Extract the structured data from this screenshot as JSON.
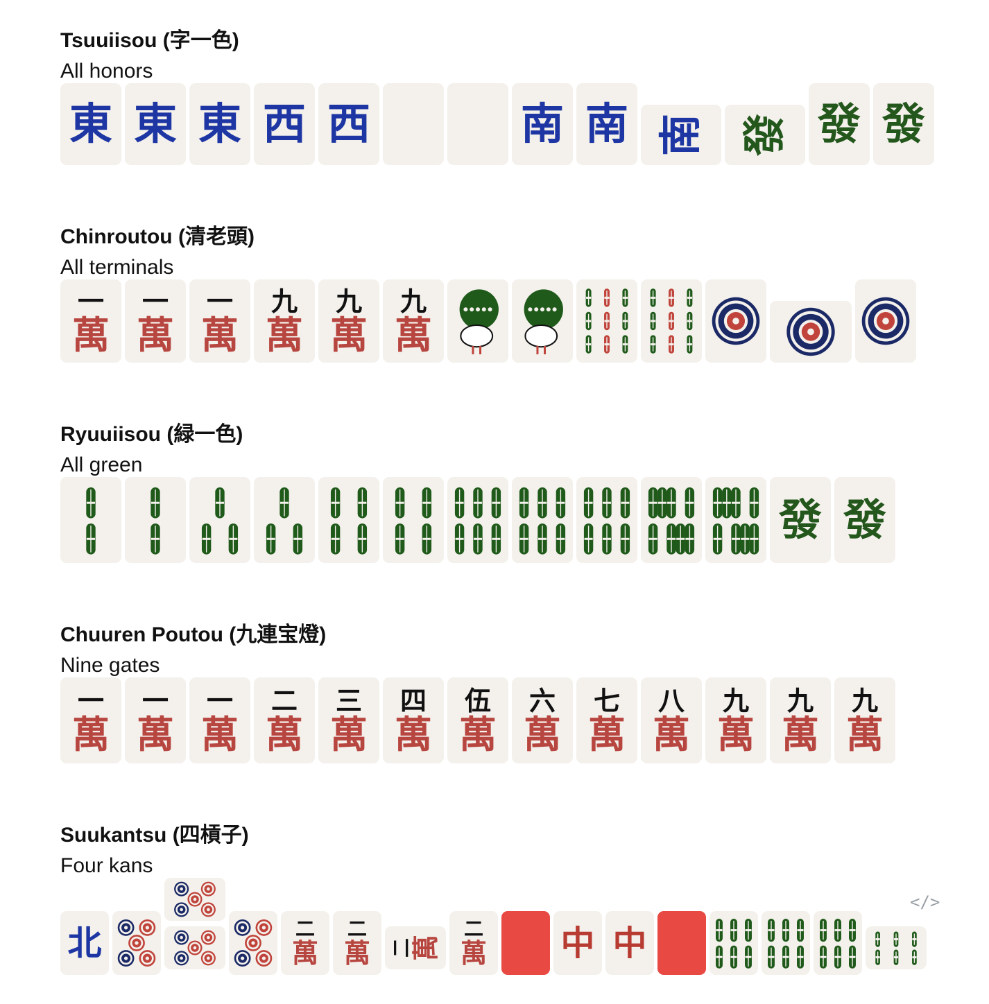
{
  "sections": [
    {
      "title": "Tsuuiisou (字一色)",
      "subtitle": "All honors",
      "tiles": [
        {
          "kind": "honor",
          "char": "東",
          "color": "#1d36a3"
        },
        {
          "kind": "honor",
          "char": "東",
          "color": "#1d36a3"
        },
        {
          "kind": "honor",
          "char": "東",
          "color": "#1d36a3"
        },
        {
          "kind": "honor",
          "char": "西",
          "color": "#1d36a3"
        },
        {
          "kind": "honor",
          "char": "西",
          "color": "#1d36a3"
        },
        {
          "kind": "blank"
        },
        {
          "kind": "blank"
        },
        {
          "kind": "honor",
          "char": "南",
          "color": "#1d36a3"
        },
        {
          "kind": "honor",
          "char": "南",
          "color": "#1d36a3"
        },
        {
          "kind": "honor",
          "char": "南",
          "color": "#1d36a3",
          "rotated": true
        },
        {
          "kind": "honor",
          "char": "發",
          "color": "#23571c",
          "rotated": true
        },
        {
          "kind": "honor",
          "char": "發",
          "color": "#23571c"
        },
        {
          "kind": "honor",
          "char": "發",
          "color": "#23571c"
        }
      ]
    },
    {
      "title": "Chinroutou (清老頭)",
      "subtitle": "All terminals",
      "tiles": [
        {
          "kind": "man",
          "num": "一",
          "wan": "萬"
        },
        {
          "kind": "man",
          "num": "一",
          "wan": "萬"
        },
        {
          "kind": "man",
          "num": "一",
          "wan": "萬"
        },
        {
          "kind": "man",
          "num": "九",
          "wan": "萬"
        },
        {
          "kind": "man",
          "num": "九",
          "wan": "萬"
        },
        {
          "kind": "man",
          "num": "九",
          "wan": "萬"
        },
        {
          "kind": "bird"
        },
        {
          "kind": "bird"
        },
        {
          "kind": "sou",
          "count": 9
        },
        {
          "kind": "sou",
          "count": 9
        },
        {
          "kind": "pin",
          "count": 1
        },
        {
          "kind": "pin",
          "count": 1,
          "rotated": true
        },
        {
          "kind": "pin",
          "count": 1
        }
      ]
    },
    {
      "title": "Ryuuiisou (緑一色)",
      "subtitle": "All green",
      "tiles": [
        {
          "kind": "sou",
          "count": 2
        },
        {
          "kind": "sou",
          "count": 2
        },
        {
          "kind": "sou",
          "count": 3
        },
        {
          "kind": "sou",
          "count": 3
        },
        {
          "kind": "sou",
          "count": 4
        },
        {
          "kind": "sou",
          "count": 4
        },
        {
          "kind": "sou",
          "count": 6
        },
        {
          "kind": "sou",
          "count": 6
        },
        {
          "kind": "sou",
          "count": 6
        },
        {
          "kind": "sou",
          "count": 8
        },
        {
          "kind": "sou",
          "count": 8
        },
        {
          "kind": "honor",
          "char": "發",
          "color": "#23571c"
        },
        {
          "kind": "honor",
          "char": "發",
          "color": "#23571c"
        }
      ]
    },
    {
      "title": "Chuuren Poutou (九連宝燈)",
      "subtitle": "Nine gates",
      "tiles": [
        {
          "kind": "man",
          "num": "一",
          "wan": "萬"
        },
        {
          "kind": "man",
          "num": "一",
          "wan": "萬"
        },
        {
          "kind": "man",
          "num": "一",
          "wan": "萬"
        },
        {
          "kind": "man",
          "num": "二",
          "wan": "萬"
        },
        {
          "kind": "man",
          "num": "三",
          "wan": "萬"
        },
        {
          "kind": "man",
          "num": "四",
          "wan": "萬"
        },
        {
          "kind": "man",
          "num": "伍",
          "wan": "萬"
        },
        {
          "kind": "man",
          "num": "六",
          "wan": "萬"
        },
        {
          "kind": "man",
          "num": "七",
          "wan": "萬"
        },
        {
          "kind": "man",
          "num": "八",
          "wan": "萬"
        },
        {
          "kind": "man",
          "num": "九",
          "wan": "萬"
        },
        {
          "kind": "man",
          "num": "九",
          "wan": "萬"
        },
        {
          "kind": "man",
          "num": "九",
          "wan": "萬"
        }
      ]
    },
    {
      "title": "Suukantsu (四槓子)",
      "subtitle": "Four kans",
      "tiles": [
        {
          "kind": "honor",
          "char": "北",
          "color": "#1d36a3"
        },
        {
          "kind": "pin",
          "count": 5
        },
        {
          "kind": "pin",
          "count": 5,
          "rotated": true
        },
        {
          "kind": "pin",
          "count": 5,
          "rotated": true
        },
        {
          "kind": "pin",
          "count": 5
        },
        {
          "kind": "man",
          "num": "二",
          "wan": "萬"
        },
        {
          "kind": "man",
          "num": "二",
          "wan": "萬"
        },
        {
          "kind": "man",
          "num": "二",
          "wan": "萬",
          "rotated": true
        },
        {
          "kind": "man",
          "num": "二",
          "wan": "萬"
        },
        {
          "kind": "back"
        },
        {
          "kind": "honor",
          "char": "中",
          "color": "#b83b32"
        },
        {
          "kind": "honor",
          "char": "中",
          "color": "#b83b32"
        },
        {
          "kind": "back"
        },
        {
          "kind": "sou",
          "count": 6
        },
        {
          "kind": "sou",
          "count": 6
        },
        {
          "kind": "sou",
          "count": 6
        },
        {
          "kind": "sou",
          "count": 6,
          "rotated": true
        }
      ]
    }
  ],
  "code_icon": "</>"
}
